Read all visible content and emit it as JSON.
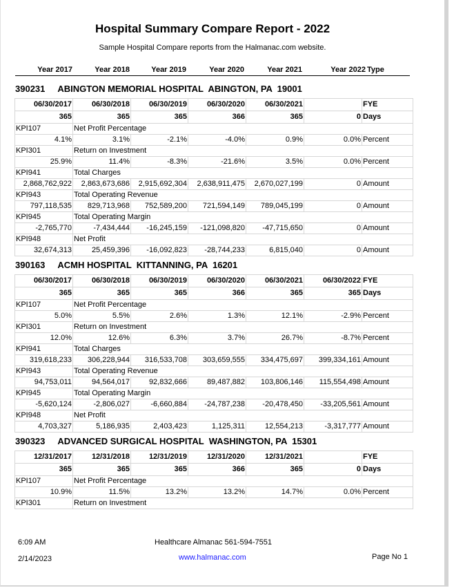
{
  "report": {
    "title": "Hospital Summary Compare Report - 2022",
    "subtitle": "Sample Hospital Compare reports from the Halmanac.com website.",
    "year_headers": [
      "Year 2017",
      "Year 2018",
      "Year 2019",
      "Year 2020",
      "Year 2021",
      "Year 2022",
      "Type"
    ]
  },
  "hospitals": [
    {
      "id": "390231",
      "name": "ABINGTON MEMORIAL HOSPITAL  ABINGTON, PA  19001",
      "fye": [
        "06/30/2017",
        "06/30/2018",
        "06/30/2019",
        "06/30/2020",
        "06/30/2021",
        "",
        "FYE"
      ],
      "days": [
        "365",
        "365",
        "365",
        "366",
        "365",
        "0",
        "Days"
      ],
      "kpis": [
        {
          "code": "KPI107",
          "label": "Net Profit Percentage",
          "values": [
            "4.1%",
            "3.1%",
            "-2.1%",
            "-4.0%",
            "0.9%",
            "0.0%"
          ],
          "type": "Percent"
        },
        {
          "code": "KPI301",
          "label": "Return on Investment",
          "values": [
            "25.9%",
            "11.4%",
            "-8.3%",
            "-21.6%",
            "3.5%",
            "0.0%"
          ],
          "type": "Percent"
        },
        {
          "code": "KPI941",
          "label": "Total Charges",
          "values": [
            "2,868,762,922",
            "2,863,673,686",
            "2,915,692,304",
            "2,638,911,475",
            "2,670,027,199",
            "0"
          ],
          "type": "Amount"
        },
        {
          "code": "KPI943",
          "label": "Total Operating Revenue",
          "values": [
            "797,118,535",
            "829,713,968",
            "752,589,200",
            "721,594,149",
            "789,045,199",
            "0"
          ],
          "type": "Amount"
        },
        {
          "code": "KPI945",
          "label": "Total Operating Margin",
          "values": [
            "-2,765,770",
            "-7,434,444",
            "-16,245,159",
            "-121,098,820",
            "-47,715,650",
            "0"
          ],
          "type": "Amount"
        },
        {
          "code": "KPI948",
          "label": "Net Profit",
          "values": [
            "32,674,313",
            "25,459,396",
            "-16,092,823",
            "-28,744,233",
            "6,815,040",
            "0"
          ],
          "type": "Amount"
        }
      ]
    },
    {
      "id": "390163",
      "name": "ACMH HOSPITAL  KITTANNING, PA  16201",
      "fye": [
        "06/30/2017",
        "06/30/2018",
        "06/30/2019",
        "06/30/2020",
        "06/30/2021",
        "06/30/2022",
        "FYE"
      ],
      "days": [
        "365",
        "365",
        "365",
        "366",
        "365",
        "365",
        "Days"
      ],
      "kpis": [
        {
          "code": "KPI107",
          "label": "Net Profit Percentage",
          "values": [
            "5.0%",
            "5.5%",
            "2.6%",
            "1.3%",
            "12.1%",
            "-2.9%"
          ],
          "type": "Percent"
        },
        {
          "code": "KPI301",
          "label": "Return on Investment",
          "values": [
            "12.0%",
            "12.6%",
            "6.3%",
            "3.7%",
            "26.7%",
            "-8.7%"
          ],
          "type": "Percent"
        },
        {
          "code": "KPI941",
          "label": "Total Charges",
          "values": [
            "319,618,233",
            "306,228,944",
            "316,533,708",
            "303,659,555",
            "334,475,697",
            "399,334,161"
          ],
          "type": "Amount"
        },
        {
          "code": "KPI943",
          "label": "Total Operating Revenue",
          "values": [
            "94,753,011",
            "94,564,017",
            "92,832,666",
            "89,487,882",
            "103,806,146",
            "115,554,498"
          ],
          "type": "Amount"
        },
        {
          "code": "KPI945",
          "label": "Total Operating Margin",
          "values": [
            "-5,620,124",
            "-2,806,027",
            "-6,660,884",
            "-24,787,238",
            "-20,478,450",
            "-33,205,561"
          ],
          "type": "Amount"
        },
        {
          "code": "KPI948",
          "label": "Net Profit",
          "values": [
            "4,703,327",
            "5,186,935",
            "2,403,423",
            "1,125,311",
            "12,554,213",
            "-3,317,777"
          ],
          "type": "Amount"
        }
      ]
    },
    {
      "id": "390323",
      "name": "ADVANCED SURGICAL HOSPITAL  WASHINGTON, PA  15301",
      "fye": [
        "12/31/2017",
        "12/31/2018",
        "12/31/2019",
        "12/31/2020",
        "12/31/2021",
        "",
        "FYE"
      ],
      "days": [
        "365",
        "365",
        "365",
        "366",
        "365",
        "0",
        "Days"
      ],
      "kpis": [
        {
          "code": "KPI107",
          "label": "Net Profit Percentage",
          "values": [
            "10.9%",
            "11.5%",
            "13.2%",
            "13.2%",
            "14.7%",
            "0.0%"
          ],
          "type": "Percent"
        },
        {
          "code": "KPI301",
          "label": "Return on Investment"
        }
      ]
    }
  ],
  "footer": {
    "time": "6:09 AM",
    "company": "Healthcare Almanac 561-594-7551",
    "date": "2/14/2023",
    "website": "www.halmanac.com",
    "page": "Page No 1"
  }
}
